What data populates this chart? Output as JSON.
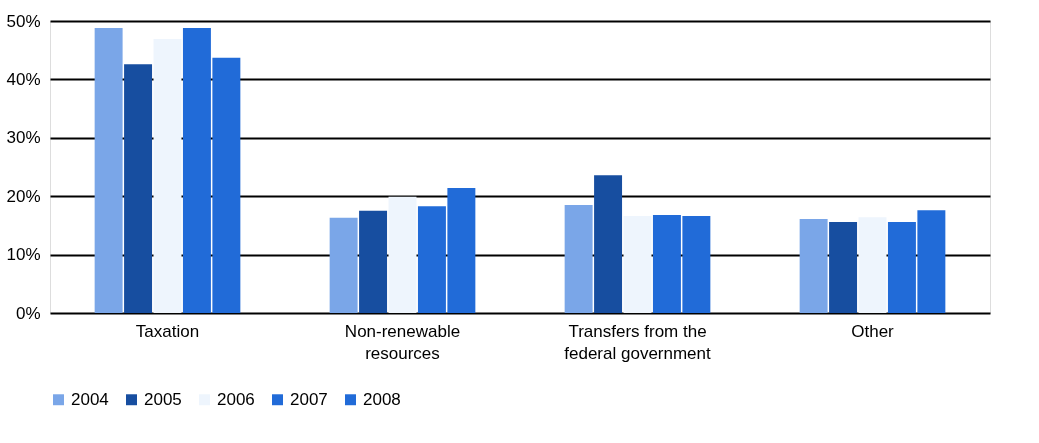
{
  "chart_data": {
    "type": "bar",
    "categories": [
      "Taxation",
      "Non-renewable resources",
      "Transfers from the federal government",
      "Other"
    ],
    "series": [
      {
        "name": "2004",
        "color": "#7aa6e8",
        "values": [
          48.8,
          16.3,
          18.5,
          16.1
        ]
      },
      {
        "name": "2005",
        "color": "#174ea0",
        "values": [
          42.6,
          17.5,
          23.6,
          15.6
        ]
      },
      {
        "name": "2006",
        "color": "#eef5fd",
        "values": [
          46.9,
          19.9,
          16.6,
          16.4
        ]
      },
      {
        "name": "2007",
        "color": "#216bd8",
        "values": [
          48.8,
          18.3,
          16.8,
          15.6
        ]
      },
      {
        "name": "2008",
        "color": "#216bd8",
        "values": [
          43.7,
          21.4,
          16.6,
          17.6
        ]
      }
    ],
    "ylim": [
      0,
      50
    ],
    "yticks": [
      {
        "value": 0,
        "label": "0%"
      },
      {
        "value": 10,
        "label": "10%"
      },
      {
        "value": 20,
        "label": "20%"
      },
      {
        "value": 30,
        "label": "30%"
      },
      {
        "value": 40,
        "label": "40%"
      },
      {
        "value": 50,
        "label": "50%"
      }
    ],
    "grid": "y",
    "legend": "bottom"
  }
}
